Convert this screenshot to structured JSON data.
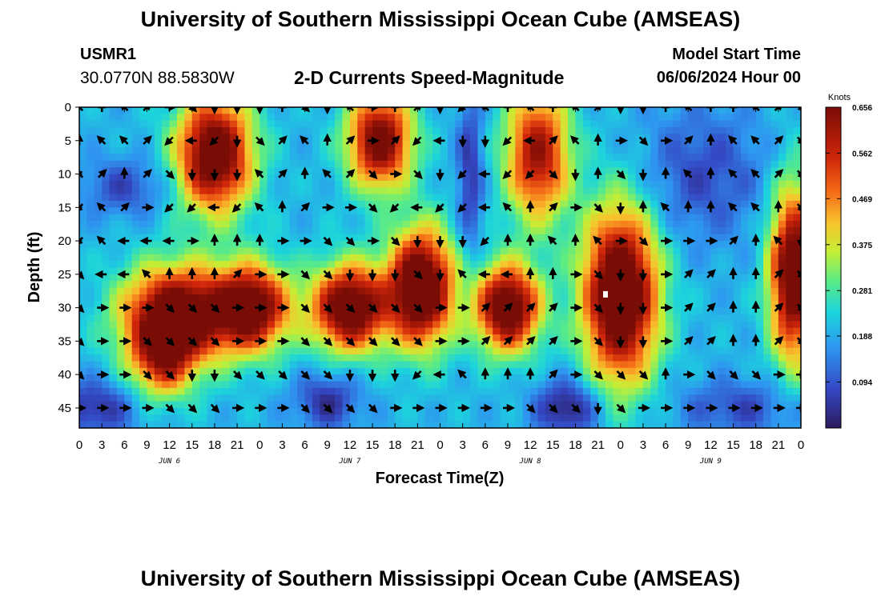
{
  "header": {
    "title": "University of Southern Mississippi Ocean Cube (AMSEAS)",
    "station_id": "USMR1",
    "station_coords": "30.0770N  88.5830W",
    "plot_title": "2-D Currents Speed-Magnitude",
    "model_start_label": "Model Start Time",
    "model_start_value": "06/06/2024 Hour 00"
  },
  "footer": {
    "title": "University of Southern Mississippi Ocean Cube (AMSEAS)"
  },
  "chart_data": {
    "type": "heatmap",
    "title": "2-D Currents Speed-Magnitude",
    "xlabel": "Forecast Time(Z)",
    "ylabel": "Depth (ft)",
    "xlim": [
      0,
      96
    ],
    "ylim": [
      48,
      0
    ],
    "x_tick_labels": [
      "0",
      "3",
      "6",
      "9",
      "12",
      "15",
      "18",
      "21",
      "0",
      "3",
      "6",
      "9",
      "12",
      "15",
      "18",
      "21",
      "0",
      "3",
      "6",
      "9",
      "12",
      "15",
      "18",
      "21",
      "0",
      "3",
      "6",
      "9",
      "12",
      "15",
      "18",
      "21",
      "0"
    ],
    "y_ticks": [
      0,
      5,
      10,
      15,
      20,
      25,
      30,
      35,
      40,
      45
    ],
    "date_labels": [
      {
        "label": "JUN 6",
        "hour": 12
      },
      {
        "label": "JUN 7",
        "hour": 36
      },
      {
        "label": "JUN 8",
        "hour": 60
      },
      {
        "label": "JUN 9",
        "hour": 84
      }
    ],
    "colorbar": {
      "label": "Knots",
      "min": 0.0,
      "max": 0.656,
      "tick_values": [
        0.094,
        0.188,
        0.281,
        0.375,
        0.469,
        0.562,
        0.656
      ],
      "tick_labels": [
        "0.094",
        "0.188",
        "0.281",
        "0.375",
        "0.469",
        "0.562",
        "0.656"
      ]
    },
    "hotspots": [
      {
        "t": 18,
        "d": 7,
        "st": 3.5,
        "sd": 6,
        "a": 0.55
      },
      {
        "t": 13,
        "d": 31,
        "st": 5,
        "sd": 5,
        "a": 0.55
      },
      {
        "t": 11,
        "d": 38,
        "st": 3,
        "sd": 4,
        "a": 0.3
      },
      {
        "t": 23,
        "d": 30,
        "st": 3.5,
        "sd": 4.5,
        "a": 0.5
      },
      {
        "t": 36,
        "d": 30,
        "st": 3.5,
        "sd": 4.5,
        "a": 0.55
      },
      {
        "t": 40,
        "d": 5,
        "st": 3,
        "sd": 5,
        "a": 0.5
      },
      {
        "t": 45.5,
        "d": 27,
        "st": 3,
        "sd": 6,
        "a": 0.6
      },
      {
        "t": 57,
        "d": 30,
        "st": 3,
        "sd": 4.5,
        "a": 0.55
      },
      {
        "t": 61,
        "d": 7,
        "st": 3,
        "sd": 7,
        "a": 0.42
      },
      {
        "t": 72,
        "d": 28,
        "st": 3.5,
        "sd": 9,
        "a": 0.6
      },
      {
        "t": 95,
        "d": 25,
        "st": 2.2,
        "sd": 9,
        "a": 0.55
      }
    ],
    "lowspots": [
      {
        "t": 2,
        "d": 45,
        "st": 4,
        "sd": 3,
        "a": 0.16
      },
      {
        "t": 6,
        "d": 12,
        "st": 4,
        "sd": 3,
        "a": 0.12
      },
      {
        "t": 33,
        "d": 44,
        "st": 3,
        "sd": 3,
        "a": 0.16
      },
      {
        "t": 52,
        "d": 10,
        "st": 1.2,
        "sd": 9,
        "a": 0.15
      },
      {
        "t": 65,
        "d": 45,
        "st": 3,
        "sd": 3,
        "a": 0.2
      },
      {
        "t": 83,
        "d": 10,
        "st": 6,
        "sd": 7,
        "a": 0.12
      },
      {
        "t": 88,
        "d": 45,
        "st": 6,
        "sd": 3,
        "a": 0.12
      }
    ],
    "vectors": {
      "hour_step": 3,
      "depths": [
        0,
        5,
        10,
        15,
        20,
        25,
        30,
        35,
        40,
        45
      ],
      "direction_rows_deg": [
        [
          315,
          0,
          315,
          45,
          90,
          135,
          180,
          180,
          180,
          0,
          135,
          180,
          315,
          90,
          0,
          45,
          180,
          225,
          315,
          0,
          315,
          0,
          315,
          45,
          180,
          180,
          0,
          315,
          0,
          0,
          315,
          45,
          135
        ],
        [
          0,
          315,
          315,
          45,
          225,
          270,
          225,
          180,
          135,
          45,
          315,
          0,
          45,
          90,
          45,
          225,
          270,
          180,
          180,
          225,
          270,
          45,
          315,
          0,
          90,
          135,
          90,
          45,
          0,
          315,
          315,
          45,
          135
        ],
        [
          315,
          45,
          0,
          45,
          135,
          180,
          180,
          180,
          315,
          45,
          0,
          315,
          45,
          135,
          90,
          135,
          180,
          225,
          270,
          225,
          225,
          135,
          180,
          0,
          135,
          180,
          0,
          315,
          0,
          315,
          315,
          45,
          135
        ],
        [
          225,
          315,
          45,
          90,
          225,
          225,
          270,
          225,
          315,
          0,
          45,
          90,
          90,
          135,
          225,
          270,
          225,
          225,
          270,
          315,
          0,
          45,
          90,
          135,
          180,
          0,
          315,
          0,
          0,
          315,
          315,
          0,
          135
        ],
        [
          225,
          315,
          270,
          270,
          270,
          90,
          0,
          0,
          0,
          90,
          90,
          135,
          135,
          90,
          135,
          180,
          180,
          180,
          225,
          0,
          0,
          315,
          0,
          315,
          90,
          135,
          90,
          90,
          90,
          45,
          0,
          315,
          180
        ],
        [
          135,
          270,
          270,
          315,
          0,
          0,
          0,
          45,
          90,
          90,
          135,
          135,
          180,
          180,
          180,
          135,
          180,
          315,
          270,
          270,
          0,
          0,
          90,
          135,
          180,
          180,
          90,
          45,
          45,
          0,
          0,
          45,
          135
        ],
        [
          135,
          90,
          90,
          90,
          135,
          135,
          135,
          90,
          90,
          90,
          135,
          135,
          135,
          135,
          135,
          135,
          90,
          90,
          45,
          45,
          45,
          45,
          90,
          135,
          180,
          180,
          90,
          45,
          45,
          0,
          0,
          45,
          135
        ],
        [
          135,
          90,
          90,
          135,
          135,
          135,
          135,
          90,
          90,
          90,
          135,
          135,
          135,
          135,
          135,
          135,
          90,
          90,
          45,
          45,
          45,
          45,
          90,
          135,
          180,
          180,
          90,
          45,
          45,
          0,
          0,
          45,
          135
        ],
        [
          135,
          90,
          90,
          135,
          135,
          180,
          180,
          135,
          135,
          135,
          135,
          135,
          180,
          180,
          180,
          225,
          270,
          315,
          0,
          0,
          0,
          45,
          90,
          135,
          135,
          135,
          0,
          90,
          135,
          135,
          135,
          90,
          90
        ],
        [
          90,
          90,
          90,
          90,
          135,
          135,
          135,
          90,
          90,
          90,
          135,
          135,
          135,
          135,
          90,
          90,
          90,
          90,
          90,
          90,
          135,
          135,
          135,
          180,
          135,
          90,
          90,
          90,
          90,
          90,
          90,
          90,
          90
        ]
      ]
    },
    "marker": {
      "hour": 70,
      "depth": 28
    }
  }
}
